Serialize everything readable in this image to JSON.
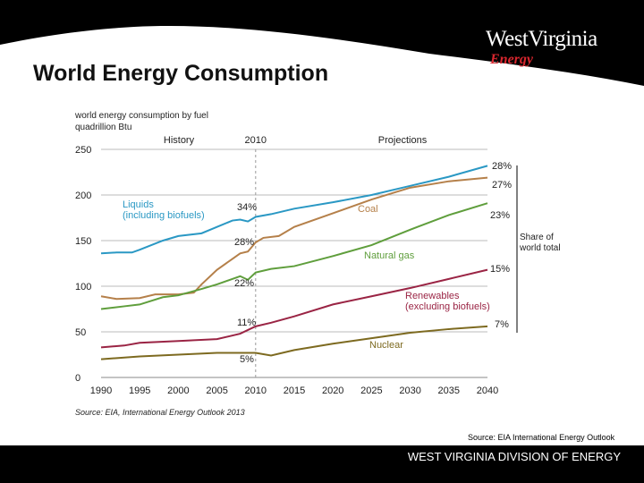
{
  "slide": {
    "title": "World Energy Consumption",
    "logo_main": "WestVirginia",
    "logo_sub": "Energy",
    "source_note": "Source: EIA International Energy Outlook",
    "footer": "WEST VIRGINIA DIVISION OF ENERGY"
  },
  "chart_data": {
    "type": "line",
    "title": "world energy consumption by fuel",
    "ylabel": "quadrillion Btu",
    "ylim": [
      0,
      250
    ],
    "xlim": [
      1990,
      2040
    ],
    "yticks": [
      0,
      50,
      100,
      150,
      200,
      250
    ],
    "xticks": [
      1990,
      1995,
      2000,
      2005,
      2010,
      2015,
      2020,
      2025,
      2030,
      2035,
      2040
    ],
    "grid": true,
    "divider": {
      "x": 2010,
      "label": "2010",
      "left_label": "History",
      "right_label": "Projections"
    },
    "share_label": "Share of\nworld total",
    "source": "Source:  EIA, International Energy Outlook 2013",
    "series": [
      {
        "name": "Liquids\n(including biofuels)",
        "color": "#2a98c4",
        "x": [
          1990,
          1992,
          1994,
          1995,
          1998,
          2000,
          2003,
          2005,
          2007,
          2008,
          2009,
          2010,
          2012,
          2015,
          2020,
          2025,
          2030,
          2035,
          2040
        ],
        "y": [
          136,
          137,
          137,
          140,
          150,
          155,
          158,
          165,
          172,
          173,
          171,
          176,
          179,
          185,
          192,
          200,
          210,
          220,
          232
        ],
        "share_2010": "34%",
        "share_2040": "28%"
      },
      {
        "name": "Coal",
        "color": "#b5804a",
        "x": [
          1990,
          1992,
          1995,
          1997,
          2000,
          2002,
          2003,
          2005,
          2007,
          2008,
          2009,
          2010,
          2011,
          2013,
          2015,
          2020,
          2025,
          2030,
          2035,
          2040
        ],
        "y": [
          89,
          86,
          87,
          91,
          91,
          93,
          102,
          118,
          130,
          136,
          138,
          148,
          153,
          155,
          165,
          180,
          195,
          208,
          215,
          219
        ],
        "share_2010": "28%",
        "share_2040": "27%"
      },
      {
        "name": "Natural gas",
        "color": "#5f9e3c",
        "x": [
          1990,
          1993,
          1995,
          1998,
          2000,
          2003,
          2005,
          2008,
          2009,
          2010,
          2012,
          2015,
          2020,
          2025,
          2030,
          2035,
          2040
        ],
        "y": [
          75,
          78,
          80,
          88,
          90,
          97,
          102,
          111,
          107,
          115,
          119,
          122,
          133,
          145,
          162,
          178,
          191
        ],
        "share_2010": "22%",
        "share_2040": "23%"
      },
      {
        "name": "Renewables\n(excluding biofuels)",
        "color": "#9a2444",
        "x": [
          1990,
          1993,
          1995,
          2000,
          2005,
          2008,
          2010,
          2012,
          2015,
          2020,
          2025,
          2030,
          2035,
          2040
        ],
        "y": [
          33,
          35,
          38,
          40,
          42,
          48,
          56,
          60,
          67,
          80,
          89,
          98,
          108,
          118
        ],
        "share_2010": "11%",
        "share_2040": "15%"
      },
      {
        "name": "Nuclear",
        "color": "#7d6a20",
        "x": [
          1990,
          1995,
          2000,
          2005,
          2008,
          2010,
          2012,
          2015,
          2020,
          2025,
          2030,
          2035,
          2040
        ],
        "y": [
          20,
          23,
          25,
          27,
          27,
          27,
          24,
          30,
          37,
          43,
          49,
          53,
          56
        ],
        "share_2010": "5%",
        "share_2040": "7%"
      }
    ]
  }
}
